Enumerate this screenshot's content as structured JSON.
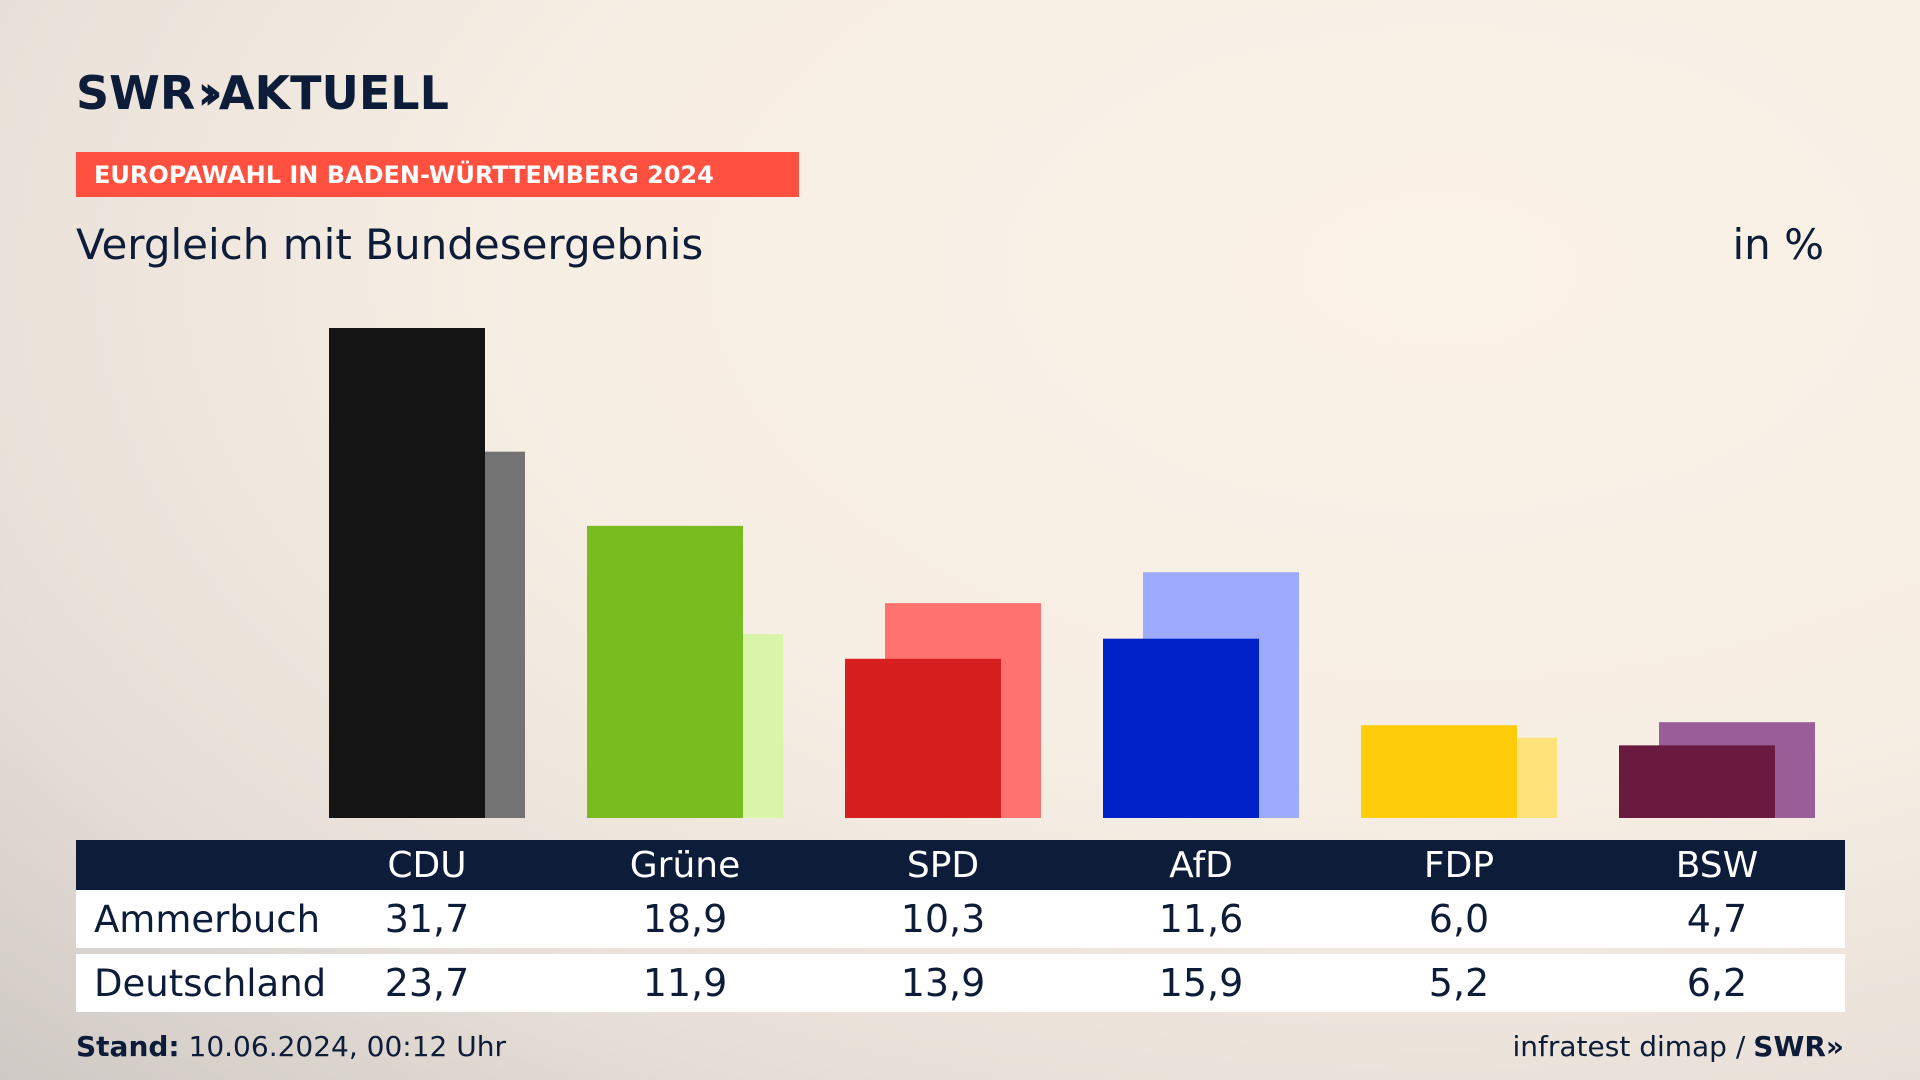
{
  "header": {
    "logo_swr": "SWR",
    "logo_chevrons": "»",
    "logo_aktuell": "AKTUELL",
    "banner": "EUROPAWAHL IN BADEN-WÜRTTEMBERG 2024",
    "subtitle": "Vergleich mit Bundesergebnis",
    "unit": "in %"
  },
  "chart_data": {
    "type": "bar",
    "categories": [
      "CDU",
      "Grüne",
      "SPD",
      "AfD",
      "FDP",
      "BSW"
    ],
    "series": [
      {
        "name": "Ammerbuch",
        "values": [
          31.7,
          18.9,
          10.3,
          11.6,
          6.0,
          4.7
        ],
        "colors": [
          "#141414",
          "#78bc1e",
          "#d71f1f",
          "#0021c8",
          "#ffcc0c",
          "#6a193f"
        ]
      },
      {
        "name": "Deutschland",
        "values": [
          23.7,
          11.9,
          13.9,
          15.9,
          5.2,
          6.2
        ],
        "colors": [
          "#737373",
          "#d8f5aa",
          "#ff736e",
          "#9dabff",
          "#ffe27a",
          "#9a5f98"
        ]
      }
    ],
    "table_values": {
      "Ammerbuch": [
        "31,7",
        "18,9",
        "10,3",
        "11,6",
        "6,0",
        "4,7"
      ],
      "Deutschland": [
        "23,7",
        "11,9",
        "13,9",
        "15,9",
        "5,2",
        "6,2"
      ]
    },
    "ylim": [
      0,
      31.7
    ]
  },
  "footer": {
    "stand_label": "Stand:",
    "stand_value": "10.06.2024, 00:12 Uhr",
    "source": "infratest dimap /",
    "source_brand": "SWR»"
  }
}
